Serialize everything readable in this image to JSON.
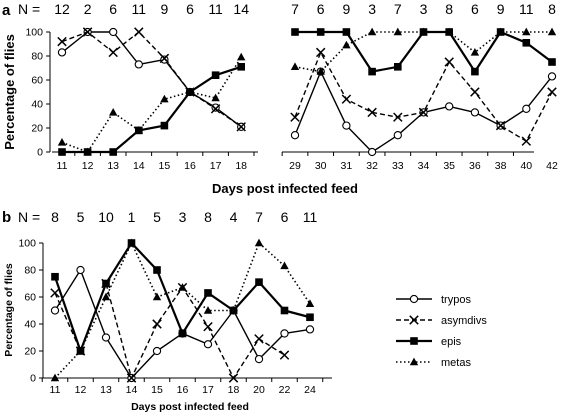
{
  "chart_data": [
    {
      "panel": "a",
      "type": "line",
      "n_label": "N =",
      "xlabel": "Days post infected feed",
      "ylabel": "Percentage of flies",
      "ylim": [
        0,
        100
      ],
      "yticks": [
        0,
        20,
        40,
        60,
        80,
        100
      ],
      "segments": [
        {
          "x": [
            "11",
            "12",
            "13",
            "14",
            "15",
            "16",
            "17",
            "18"
          ],
          "n": [
            "12",
            "2",
            "6",
            "11",
            "9",
            "6",
            "11",
            "14"
          ],
          "series": [
            {
              "key": "trypos",
              "values": [
                83,
                100,
                100,
                73,
                77,
                50,
                37,
                21
              ]
            },
            {
              "key": "asymdivs",
              "values": [
                92,
                100,
                83,
                100,
                78,
                50,
                36,
                21
              ]
            },
            {
              "key": "epis",
              "values": [
                0,
                0,
                0,
                18,
                22,
                50,
                64,
                71
              ]
            },
            {
              "key": "metas",
              "values": [
                8,
                0,
                33,
                18,
                44,
                50,
                45,
                79
              ]
            }
          ]
        },
        {
          "x": [
            "29",
            "30",
            "31",
            "32",
            "33",
            "34",
            "35",
            "36",
            "38",
            "40",
            "42"
          ],
          "n": [
            "7",
            "6",
            "9",
            "3",
            "7",
            "3",
            "8",
            "6",
            "9",
            "11",
            "8"
          ],
          "series": [
            {
              "key": "trypos",
              "values": [
                14,
                67,
                22,
                0,
                14,
                33,
                38,
                33,
                22,
                36,
                63
              ]
            },
            {
              "key": "asymdivs",
              "values": [
                29,
                83,
                44,
                33,
                29,
                33,
                75,
                50,
                22,
                9,
                50
              ]
            },
            {
              "key": "epis",
              "values": [
                100,
                100,
                100,
                67,
                71,
                100,
                100,
                67,
                100,
                91,
                75
              ]
            },
            {
              "key": "metas",
              "values": [
                71,
                67,
                89,
                100,
                100,
                100,
                100,
                83,
                100,
                100,
                100
              ]
            }
          ]
        }
      ]
    },
    {
      "panel": "b",
      "type": "line",
      "n_label": "N =",
      "xlabel": "Days post infected feed",
      "ylabel": "Percentage of flies",
      "ylim": [
        0,
        100
      ],
      "yticks": [
        0,
        20,
        40,
        60,
        80,
        100
      ],
      "x": [
        "11",
        "12",
        "13",
        "14",
        "15",
        "16",
        "17",
        "18",
        "20",
        "22",
        "24"
      ],
      "n": [
        "8",
        "5",
        "10",
        "1",
        "5",
        "3",
        "8",
        "4",
        "7",
        "6",
        "11"
      ],
      "series": [
        {
          "key": "trypos",
          "values": [
            50,
            80,
            30,
            0,
            20,
            33,
            25,
            50,
            14,
            33,
            36
          ]
        },
        {
          "key": "asymdivs",
          "values": [
            63,
            20,
            70,
            0,
            40,
            67,
            38,
            0,
            29,
            17,
            null
          ]
        },
        {
          "key": "epis",
          "values": [
            75,
            20,
            70,
            100,
            80,
            33,
            63,
            50,
            71,
            50,
            45
          ]
        },
        {
          "key": "metas",
          "values": [
            0,
            20,
            60,
            100,
            60,
            67,
            50,
            50,
            100,
            83,
            55
          ]
        }
      ]
    }
  ],
  "legend": [
    {
      "key": "trypos",
      "label": "trypos"
    },
    {
      "key": "asymdivs",
      "label": "asymdivs"
    },
    {
      "key": "epis",
      "label": "epis"
    },
    {
      "key": "metas",
      "label": "metas"
    }
  ],
  "series_style": {
    "trypos": {
      "dash": "",
      "width": 1.4,
      "marker": "circle-open",
      "color": "#000000"
    },
    "asymdivs": {
      "dash": "5,3",
      "width": 1.4,
      "marker": "cross",
      "color": "#000000"
    },
    "epis": {
      "dash": "",
      "width": 2.2,
      "marker": "square-filled",
      "color": "#000000"
    },
    "metas": {
      "dash": "1.5,2.5",
      "width": 1.6,
      "marker": "triangle-filled",
      "color": "#000000"
    }
  }
}
